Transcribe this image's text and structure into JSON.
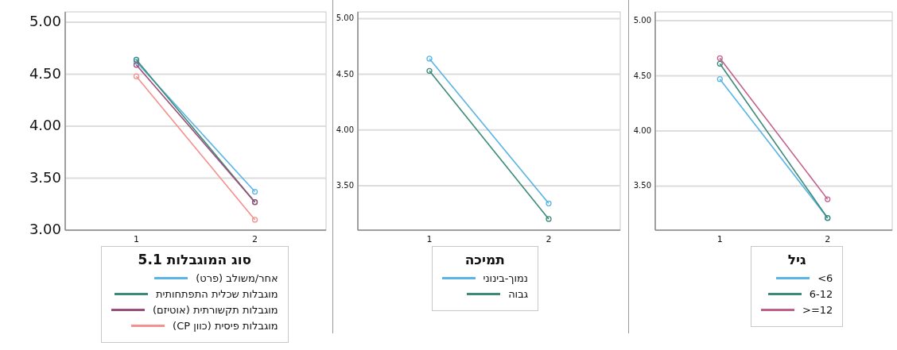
{
  "chart_data": [
    {
      "type": "line",
      "legend_title": "סוג המוגבלות 5.1",
      "categories": [
        "1",
        "2"
      ],
      "ylim": [
        3.0,
        5.1
      ],
      "yticks": [
        {
          "value": 3,
          "label": "3.00"
        },
        {
          "value": 3.5,
          "label": "3.50"
        },
        {
          "value": 4,
          "label": "4.00"
        },
        {
          "value": 4.5,
          "label": "4.50"
        },
        {
          "value": 5,
          "label": "5.00"
        }
      ],
      "grid": "y",
      "marker": "circle",
      "legend": "bottom",
      "series": [
        {
          "name": "אחר/משולב (פרט)",
          "color": "#5ab4e5",
          "values": [
            4.62,
            3.37
          ]
        },
        {
          "name": "מוגבלות שכלית התפתחותית",
          "color": "#3d8a78",
          "values": [
            4.64,
            3.27
          ]
        },
        {
          "name": "מוגבלות תקשורתית (אוטיזם)",
          "color": "#9b4f7b",
          "values": [
            4.59,
            3.27
          ]
        },
        {
          "name": "מוגבלות פיסית (כוון CP)",
          "color": "#f4908e",
          "values": [
            4.48,
            3.1
          ]
        }
      ]
    },
    {
      "type": "line",
      "legend_title": "תמיכה",
      "categories": [
        "1",
        "2"
      ],
      "ylim": [
        3.1,
        5.06
      ],
      "yticks": [
        {
          "value": 3.5,
          "label": "3.50"
        },
        {
          "value": 4,
          "label": "4.00"
        },
        {
          "value": 4.5,
          "label": "4.50"
        },
        {
          "value": 5,
          "label": "5.00"
        }
      ],
      "grid": "y",
      "marker": "circle",
      "legend": "bottom",
      "series": [
        {
          "name": "נמוך-בינוני",
          "color": "#5ab4e5",
          "values": [
            4.64,
            3.34
          ]
        },
        {
          "name": "גבוה",
          "color": "#3d8a78",
          "values": [
            4.53,
            3.2
          ]
        }
      ]
    },
    {
      "type": "line",
      "legend_title": "גיל",
      "categories": [
        "1",
        "2"
      ],
      "ylim": [
        3.1,
        5.08
      ],
      "yticks": [
        {
          "value": 3.5,
          "label": "3.50"
        },
        {
          "value": 4,
          "label": "4.00"
        },
        {
          "value": 4.5,
          "label": "4.50"
        },
        {
          "value": 5,
          "label": "5.00"
        }
      ],
      "grid": "y",
      "marker": "circle",
      "legend": "bottom",
      "series": [
        {
          "name": "<6",
          "color": "#5ab4e5",
          "values": [
            4.47,
            3.21
          ]
        },
        {
          "name": "6-12",
          "color": "#3d8a78",
          "values": [
            4.61,
            3.21
          ]
        },
        {
          "name": ">=12",
          "color": "#c2608c",
          "values": [
            4.66,
            3.38
          ]
        }
      ]
    }
  ]
}
